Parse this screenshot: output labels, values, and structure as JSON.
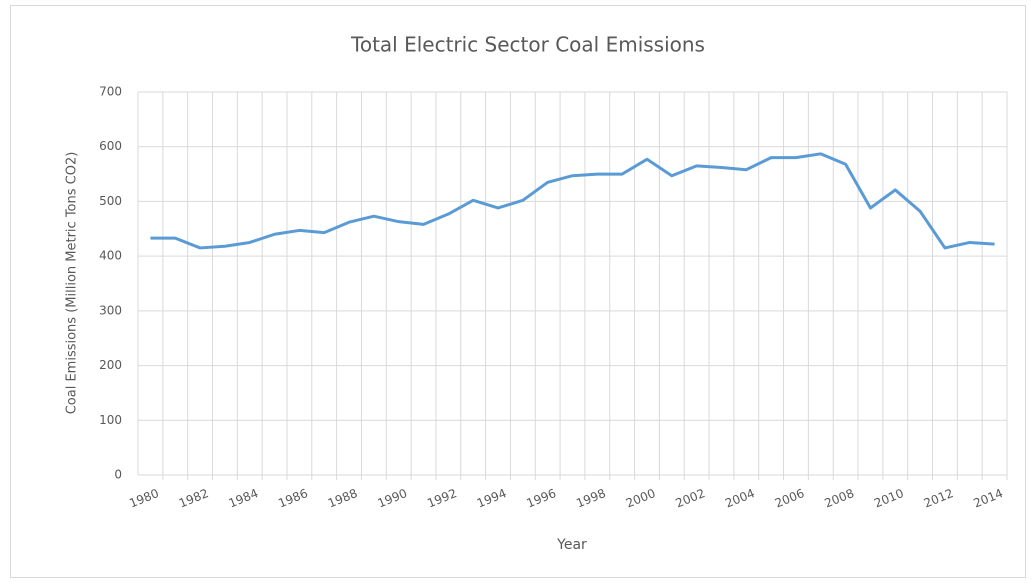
{
  "chart_data": {
    "type": "line",
    "title": "Total Electric Sector Coal Emissions",
    "x_label": "Year",
    "y_label": "Coal Emissions (Million Metric Tons CO2)",
    "categories": [
      "1980",
      null,
      "1982",
      null,
      "1984",
      null,
      "1986",
      null,
      "1988",
      null,
      "1990",
      null,
      "1992",
      null,
      "1994",
      null,
      "1996",
      null,
      "1998",
      null,
      "2000",
      null,
      "2002",
      null,
      "2004",
      null,
      "2006",
      null,
      "2008",
      null,
      "2010",
      null,
      "2012",
      null,
      "2014"
    ],
    "series": [
      {
        "name": "Coal Emissions",
        "color": "#5b9bd5",
        "values": [
          433,
          433,
          415,
          418,
          425,
          440,
          447,
          443,
          462,
          473,
          463,
          458,
          477,
          502,
          488,
          502,
          535,
          547,
          550,
          550,
          577,
          547,
          565,
          562,
          558,
          580,
          580,
          587,
          568,
          488,
          521,
          482,
          415,
          425,
          422
        ]
      }
    ],
    "ylim": [
      0,
      700
    ],
    "yticks": [
      0,
      100,
      200,
      300,
      400,
      500,
      600,
      700
    ],
    "grid": true
  }
}
